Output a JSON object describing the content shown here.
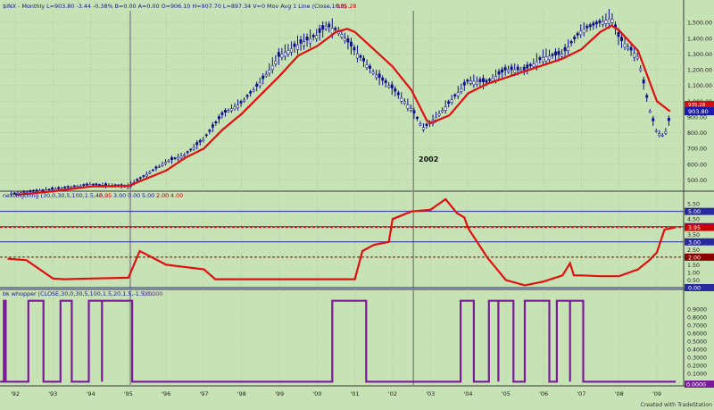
{
  "chart_data": {
    "type": "line",
    "x_tick_labels": [
      "'92",
      "'93",
      "'94",
      "'95",
      "'96",
      "'97",
      "'98",
      "'99",
      "'00",
      "'01",
      "'02",
      "'03",
      "'04",
      "'05",
      "'06",
      "'07",
      "'08",
      "'09"
    ],
    "footer": "Created with TradeStation",
    "annotation": "2002",
    "panels": [
      {
        "id": "price",
        "header": "$INX - Monthly   L=903.80  -3.44  -0.38%  B=0.00  A=0.00  O=906.10  H=907.70  L=897.34  V=0  Mov Avg 1 Line (Close,10,0)",
        "header_value": "935.28",
        "y_tick_labels": [
          "1,500.00",
          "1,400.00",
          "1,300.00",
          "1,200.00",
          "1,100.00",
          "1,000.00",
          "900.00",
          "800.00",
          "700.00",
          "600.00",
          "500.00"
        ],
        "ylim": [
          440,
          1575
        ],
        "last_price_label": "903.80",
        "ma_label": "935.28",
        "series": [
          {
            "name": "$INX",
            "style": "ohlc-bars",
            "color": "#0f0f8c",
            "x": [
              1992,
              1993,
              1994,
              1995,
              1996,
              1996.5,
              1997,
              1997.5,
              1998,
              1998.5,
              1999,
              1999.5,
              2000,
              2000.25,
              2000.6,
              2001,
              2001.5,
              2002,
              2002.5,
              2002.8,
              2003,
              2003.5,
              2004,
              2004.5,
              2005,
              2005.5,
              2006,
              2006.5,
              2007,
              2007.5,
              2007.8,
              2008,
              2008.5,
              2008.8,
              2009,
              2009.2,
              2009.35
            ],
            "values": [
              415,
              440,
              470,
              460,
              615,
              660,
              760,
              920,
              990,
              1120,
              1290,
              1360,
              1420,
              1480,
              1440,
              1320,
              1180,
              1080,
              950,
              830,
              860,
              990,
              1130,
              1120,
              1200,
              1200,
              1280,
              1300,
              1450,
              1500,
              1530,
              1400,
              1280,
              950,
              800,
              780,
              903.8
            ]
          },
          {
            "name": "Mov Avg 1 Line (Close,10,0)",
            "style": "line",
            "color": "#e01010",
            "x": [
              1992,
              1993,
              1994,
              1995,
              1996,
              1996.5,
              1997,
              1997.5,
              1998,
              1998.5,
              1999,
              1999.5,
              2000,
              2000.5,
              2000.8,
              2001,
              2001.5,
              2002,
              2002.5,
              2002.9,
              2003,
              2003.5,
              2004,
              2004.5,
              2005,
              2005.5,
              2006,
              2006.5,
              2007,
              2007.5,
              2007.8,
              2008,
              2008.5,
              2009,
              2009.35
            ],
            "values": [
              405,
              428,
              458,
              462,
              560,
              640,
              700,
              820,
              920,
              1040,
              1160,
              1290,
              1350,
              1440,
              1460,
              1440,
              1330,
              1220,
              1070,
              880,
              860,
              910,
              1050,
              1110,
              1150,
              1190,
              1230,
              1270,
              1330,
              1440,
              1480,
              1450,
              1320,
              1000,
              935.28
            ]
          }
        ]
      },
      {
        "id": "nextbigthing",
        "header": "nextbigthing (30,0,30,5,100,1.5,40,...",
        "header_values": [
          "3.95",
          "3.00",
          "0.00",
          "5.00",
          "2.00",
          "4.00"
        ],
        "y_tick_labels": [
          "5.50",
          "5.00",
          "4.50",
          "4.00",
          "3.50",
          "3.00",
          "2.50",
          "2.00",
          "1.50",
          "1.00",
          "0.50",
          "0.00"
        ],
        "ylim": [
          0,
          5.8
        ],
        "reference_lines": [
          {
            "value": 5.0,
            "label": "5.00",
            "color": "#2a2aa0",
            "style": "solid"
          },
          {
            "value": 4.0,
            "label": "4.00",
            "color": "#2a2aa0",
            "style": "solid"
          },
          {
            "value": 3.95,
            "label": "3.95",
            "color": "#cc0000",
            "style": "dashed"
          },
          {
            "value": 3.0,
            "label": "3.00",
            "color": "#2a2aa0",
            "style": "solid"
          },
          {
            "value": 2.0,
            "label": "2.00",
            "color": "#8b0000",
            "style": "dashed"
          },
          {
            "value": 0.0,
            "label": "0.00",
            "color": "#2a2aa0",
            "style": "solid"
          }
        ],
        "series": [
          {
            "name": "nextbigthing",
            "color": "#e01010",
            "x": [
              1991.8,
              1992.3,
              1993,
              1993.3,
              1994,
              1995,
              1995.3,
              1996,
              1997,
              1997.3,
              1998,
              1999,
              2000,
              2000.5,
              2001,
              2001.2,
              2001.5,
              2001.9,
              2002,
              2002.5,
              2003,
              2003.4,
              2003.5,
              2003.7,
              2003.9,
              2004,
              2004.5,
              2005,
              2005.5,
              2006,
              2006.5,
              2006.7,
              2006.8,
              2007,
              2007.5,
              2008,
              2008.5,
              2008.8,
              2009,
              2009.2,
              2009.5
            ],
            "values": [
              1.9,
              1.8,
              0.6,
              0.55,
              0.6,
              0.65,
              2.4,
              1.5,
              1.2,
              0.55,
              0.55,
              0.55,
              0.55,
              0.55,
              0.55,
              2.4,
              2.8,
              3.0,
              4.5,
              5.0,
              5.1,
              5.8,
              5.5,
              4.9,
              4.6,
              3.9,
              2.0,
              0.5,
              0.15,
              0.4,
              0.8,
              1.6,
              0.8,
              0.8,
              0.75,
              0.75,
              1.2,
              1.8,
              2.3,
              3.8,
              3.95
            ]
          }
        ]
      },
      {
        "id": "bk_whopper",
        "header": "bk whopper (CLOSE,30,0,30,5,100,1.5,20,1.5,-1.5,0...",
        "header_value": "0.0000",
        "y_tick_labels": [
          "0.9000",
          "0.8000",
          "0.7000",
          "0.6000",
          "0.5000",
          "0.4000",
          "0.3000",
          "0.2000",
          "0.1000",
          "0.0000"
        ],
        "ylim": [
          -0.03,
          1.03
        ],
        "last_label": "0.0000",
        "series": [
          {
            "name": "bk whopper",
            "color": "#7a1a9a",
            "x": [
              1991.7,
              1992.8,
              1993.2,
              1993.5,
              1993.9,
              1994.3,
              1995.1,
              1995.2,
              2000.5,
              2001.2,
              2003.9,
              2004.2,
              2004.8,
              2005.7,
              2006.3,
              2006.7
            ],
            "width": [
              0.05,
              0.05,
              0.35,
              0.05,
              0.05,
              0.25,
              0.1,
              0.05,
              0.05,
              0.3,
              0.05,
              0.3,
              0.05,
              0.65,
              0.05,
              0.4
            ]
          }
        ],
        "pulses": [
          [
            1991.7,
            1991.75
          ],
          [
            1992.35,
            1992.75
          ],
          [
            1993.2,
            1993.5
          ],
          [
            1993.95,
            1994.3
          ],
          [
            1994.3,
            1995.1
          ],
          [
            2000.4,
            2001.3
          ],
          [
            2003.8,
            2004.15
          ],
          [
            2004.55,
            2004.8
          ],
          [
            2004.8,
            2005.2
          ],
          [
            2005.5,
            2006.15
          ],
          [
            2006.35,
            2006.7
          ],
          [
            2006.7,
            2007.05
          ]
        ]
      }
    ]
  }
}
